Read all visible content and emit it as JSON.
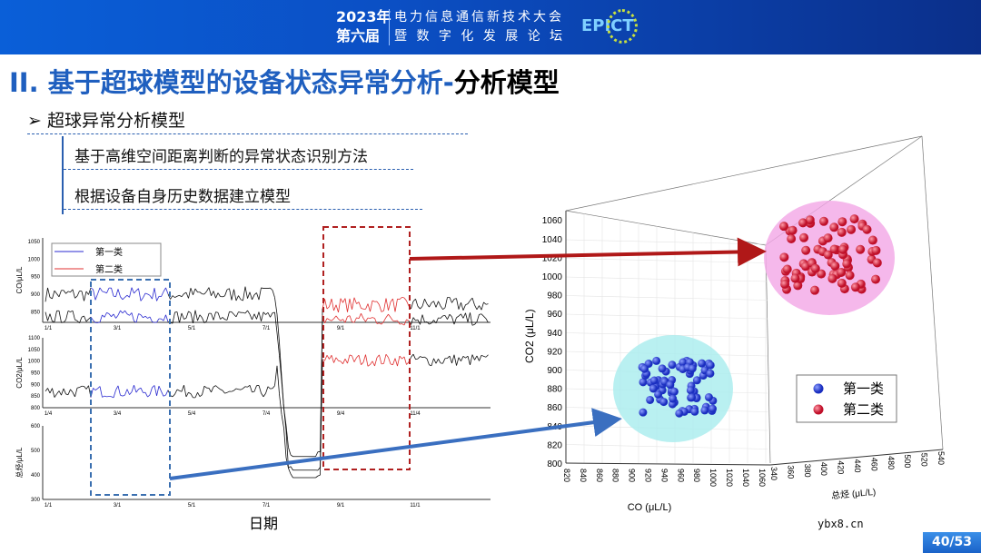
{
  "header": {
    "year": "2023年",
    "edition": "第六届",
    "conf_line1": "电力信息通信新技术大会",
    "conf_line2": "暨 数 字 化 发 展 论 坛",
    "logo": "EPICT"
  },
  "title": {
    "main": "II. 基于超球模型的设备状态异常分析-",
    "accent": "分析模型"
  },
  "bullet": {
    "icon": "arrow-bullet-icon",
    "text": "超球异常分析模型",
    "items": [
      "基于高维空间距离判断的异常状态识别方法",
      "根据设备自身历史数据建立模型"
    ]
  },
  "colors": {
    "brand": "#1f5fbf",
    "class1": "#2a2ad0",
    "class2": "#e03030",
    "box1": "#3a6fb0",
    "box2": "#b02020"
  },
  "chart_data": [
    {
      "type": "line",
      "xlabel": "日期",
      "legend": [
        "第一类",
        "第二类"
      ],
      "panels": [
        {
          "ylabel": "CO/μL/L",
          "yticks": [
            "850",
            "900",
            "950",
            "1000",
            "1050"
          ],
          "ylim": [
            820,
            1060
          ],
          "xticks": [
            "1/1",
            "3/1",
            "5/1",
            "7/1",
            "9/1",
            "11/1"
          ]
        },
        {
          "ylabel": "CO2/μL/L",
          "yticks": [
            "800",
            "850",
            "900",
            "950",
            "1000",
            "1050",
            "1100"
          ],
          "ylim": [
            800,
            1100
          ],
          "xticks": [
            "1/4",
            "3/4",
            "5/4",
            "7/4",
            "9/4",
            "11/4"
          ]
        },
        {
          "ylabel": "总烃/μL/L",
          "yticks": [
            "300",
            "400",
            "500",
            "600"
          ],
          "ylim": [
            300,
            600
          ],
          "xticks": [
            "1/1",
            "3/1",
            "5/1",
            "7/1",
            "9/1",
            "11/1"
          ]
        }
      ]
    },
    {
      "type": "scatter",
      "xlabel": "CO (μL/L)",
      "ylabel": "CO2 (μL/L)",
      "zlabel": "总烃 (μL/L)",
      "xticks": [
        "820",
        "840",
        "860",
        "880",
        "900",
        "920",
        "940",
        "960",
        "980",
        "1000",
        "1020",
        "1040",
        "1060"
      ],
      "yticks": [
        "800",
        "820",
        "840",
        "860",
        "880",
        "900",
        "920",
        "940",
        "960",
        "980",
        "1000",
        "1020",
        "1040",
        "1060"
      ],
      "zticks": [
        "340",
        "360",
        "380",
        "400",
        "420",
        "440",
        "460",
        "480",
        "500",
        "520",
        "540"
      ],
      "legend": [
        "第一类",
        "第二类"
      ]
    }
  ],
  "footer": {
    "watermark": "ybx8.cn",
    "page": "40/53"
  }
}
